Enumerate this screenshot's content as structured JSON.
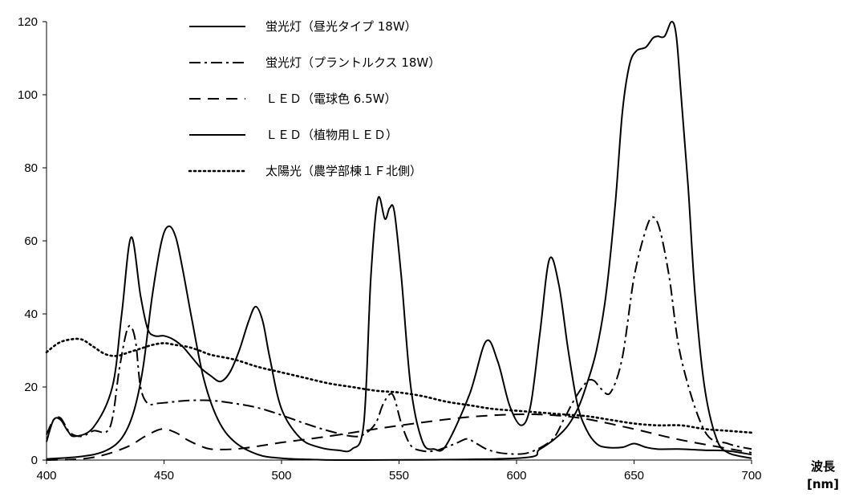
{
  "chart_data": {
    "type": "line",
    "title": "",
    "xlabel": "波長",
    "xunit": "[nm]",
    "ylabel": "",
    "xlim": [
      400,
      700
    ],
    "ylim": [
      0,
      120
    ],
    "xticks": [
      400,
      450,
      500,
      550,
      600,
      650,
      700
    ],
    "yticks": [
      0,
      20,
      40,
      60,
      80,
      100,
      120
    ],
    "grid": false,
    "legend_position": "top-center",
    "series": [
      {
        "name": "蛍光灯（昼光タイプ 18W）",
        "style": "solid",
        "x": [
          400,
          403,
          406,
          409,
          412,
          420,
          428,
          432,
          436,
          440,
          443,
          446,
          450,
          454,
          458,
          462,
          466,
          470,
          474,
          478,
          482,
          486,
          489,
          492,
          495,
          500,
          508,
          516,
          524,
          530,
          535,
          538,
          541,
          544,
          546,
          548,
          551,
          555,
          560,
          565,
          570,
          580,
          587,
          592,
          597,
          602,
          606,
          610,
          614,
          618,
          622,
          626,
          630,
          634,
          638,
          645,
          650,
          655,
          660,
          670,
          680,
          690,
          700
        ],
        "values": [
          5,
          11,
          11,
          8,
          6.5,
          9,
          20,
          40,
          61,
          45,
          36,
          34,
          34,
          33,
          31,
          28,
          25,
          23,
          21.5,
          24,
          30,
          38,
          42,
          38,
          28,
          14,
          6,
          3.5,
          2.7,
          3,
          10,
          50,
          71.5,
          66,
          69,
          68,
          50,
          20,
          5,
          3,
          4,
          18,
          32.5,
          27,
          15,
          9.5,
          15,
          35,
          55,
          48,
          30,
          15,
          8,
          4.5,
          3.5,
          3.5,
          4.5,
          3.5,
          3,
          3,
          2.7,
          2.5,
          1.5
        ]
      },
      {
        "name": "蛍光灯（プラントルクス 18W）",
        "style": "dash-dot",
        "x": [
          400,
          403,
          406,
          410,
          415,
          420,
          427,
          431,
          434,
          436,
          438,
          440,
          443,
          447,
          452,
          460,
          470,
          480,
          490,
          500,
          510,
          520,
          530,
          535,
          540,
          543,
          546,
          548,
          551,
          555,
          560,
          565,
          570,
          575,
          579,
          583,
          588,
          595,
          605,
          615,
          620,
          625,
          630,
          633,
          636,
          640,
          645,
          650,
          655,
          658,
          661,
          665,
          670,
          680,
          690,
          700
        ],
        "values": [
          7,
          11,
          11.5,
          7.5,
          6.5,
          8,
          9,
          25,
          35,
          36.5,
          32,
          20,
          15.5,
          15.5,
          15.8,
          16.3,
          16.3,
          15.5,
          14.3,
          12.3,
          10,
          8,
          6.5,
          7,
          10,
          15,
          18,
          17,
          10,
          4,
          2.5,
          2.5,
          3.5,
          4.8,
          5.8,
          4.5,
          2.8,
          1.8,
          2,
          5.5,
          11,
          17,
          21.5,
          21.7,
          19.5,
          18.5,
          28,
          50,
          63,
          66.5,
          63,
          50,
          28,
          8,
          4.5,
          3
        ]
      },
      {
        "name": "ＬＥＤ（電球色 6.5W）",
        "style": "dashed",
        "x": [
          400,
          415,
          425,
          435,
          442,
          449,
          455,
          460,
          465,
          470,
          480,
          490,
          500,
          520,
          540,
          560,
          580,
          600,
          615,
          630,
          650,
          670,
          700
        ],
        "values": [
          0,
          0.3,
          1.5,
          3.8,
          6.5,
          8.5,
          7.5,
          5.5,
          4,
          3,
          3,
          3.8,
          4.8,
          6.5,
          8.5,
          10.3,
          11.8,
          12.5,
          12.3,
          11.2,
          8.5,
          5.5,
          2
        ]
      },
      {
        "name": "ＬＥＤ（植物用ＬＥＤ）",
        "style": "solid",
        "x": [
          400,
          415,
          425,
          432,
          437,
          441,
          445,
          449,
          452,
          455,
          458,
          462,
          467,
          473,
          480,
          490,
          500,
          515,
          530,
          600,
          610,
          620,
          626,
          630,
          634,
          638,
          642,
          645,
          648,
          651,
          655,
          658,
          660,
          663,
          666,
          668,
          670,
          673,
          676,
          680,
          685,
          690,
          700
        ],
        "values": [
          0.3,
          1,
          2.5,
          6,
          13,
          25,
          45,
          60,
          64,
          61,
          52,
          38,
          22,
          11,
          5,
          1.5,
          0.5,
          0.1,
          0,
          0.5,
          3,
          8,
          14,
          21,
          30,
          45,
          70,
          95,
          108,
          112,
          113,
          115.5,
          116,
          116,
          120,
          116,
          100,
          75,
          45,
          20,
          6,
          2,
          0.5
        ]
      },
      {
        "name": "太陽光（農学部棟１Ｆ北側）",
        "style": "dotted",
        "x": [
          400,
          405,
          410,
          415,
          420,
          425,
          430,
          435,
          440,
          445,
          450,
          455,
          460,
          465,
          470,
          480,
          490,
          500,
          510,
          520,
          530,
          540,
          550,
          560,
          570,
          580,
          590,
          600,
          610,
          620,
          630,
          640,
          650,
          660,
          670,
          680,
          690,
          700
        ],
        "values": [
          29.5,
          32,
          33,
          33,
          31,
          29,
          28.5,
          29.5,
          30.5,
          31.5,
          32,
          31.5,
          31,
          30,
          28.8,
          27.5,
          25.5,
          24,
          22.5,
          21,
          20,
          19,
          18.5,
          17.5,
          16,
          15,
          14,
          13.5,
          13,
          12.5,
          12,
          11,
          10,
          9.5,
          9.5,
          8.5,
          8,
          7.5
        ]
      }
    ]
  }
}
